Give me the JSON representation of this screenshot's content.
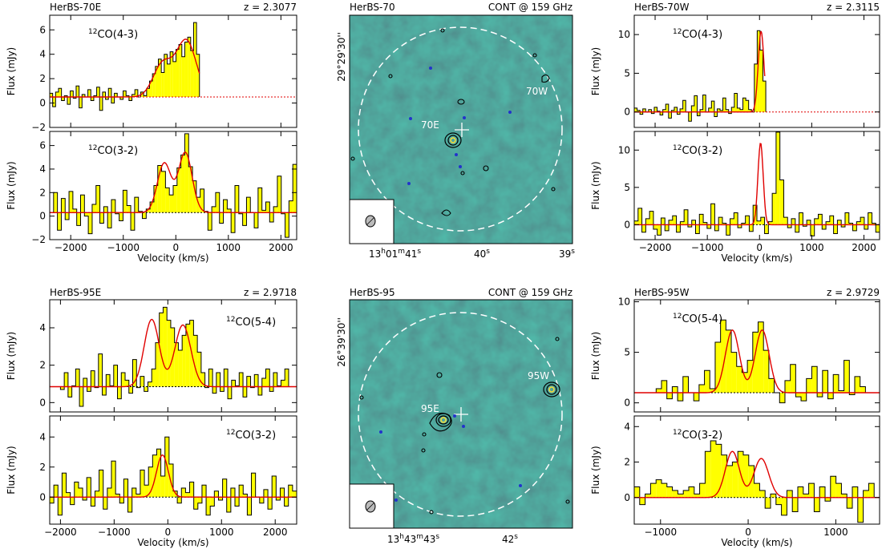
{
  "rows": [
    {
      "left": {
        "source": "HerBS-70E",
        "redshift": "z = 2.3077"
      },
      "map": {
        "source": "HerBS-70",
        "cont": "CONT @ 159 GHz",
        "dec": "29°29'30''",
        "ra": {
          "a": "13",
          "b": "h",
          "c": "01",
          "d": "m",
          "e": "41",
          "f": "s"
        },
        "ra2": "40",
        "ra2s": "s",
        "ra3": "39",
        "ra3s": "s",
        "labels": [
          "70E",
          "70W"
        ]
      },
      "right": {
        "source": "HerBS-70W",
        "redshift": "z = 2.3115"
      }
    },
    {
      "left": {
        "source": "HerBS-95E",
        "redshift": "z = 2.9718"
      },
      "map": {
        "source": "HerBS-95",
        "cont": "CONT @ 159 GHz",
        "dec": "26°39'30''",
        "ra": {
          "a": "13",
          "b": "h",
          "c": "43",
          "d": "m",
          "e": "43",
          "f": "s"
        },
        "ra2": "42",
        "ra2s": "s",
        "labels": [
          "95E",
          "95W"
        ]
      },
      "right": {
        "source": "HerBS-95W",
        "redshift": "z = 2.9729"
      }
    }
  ],
  "axis_labels": {
    "flux": "Flux (mJy)",
    "velocity": "Velocity (km/s)"
  },
  "colors": {
    "fill": "#ffff00",
    "fit": "#e00000",
    "map_bg": "#2f7f73",
    "contour": "#000000",
    "beam_circle": "#ffffff"
  },
  "chart_data": [
    {
      "type": "line",
      "id": "70E-43",
      "source": "HerBS-70E",
      "line": "12CO(4-3)",
      "xlim": [
        -2400,
        2300
      ],
      "ylim": [
        -2,
        7.2
      ],
      "yticks": [
        -2,
        0,
        2,
        4,
        6
      ],
      "xticks": [
        -2000,
        -1000,
        0,
        1000,
        2000
      ],
      "show_xticklabels": false,
      "baseline": 0.5,
      "data_end_velocity": 450,
      "x_range": [
        -2400,
        450
      ],
      "steps": [
        0.8,
        -0.3,
        0.9,
        1.2,
        0.2,
        0.6,
        -0.1,
        1.0,
        0.4,
        1.4,
        -0.4,
        0.7,
        0.5,
        1.1,
        0.2,
        0.6,
        1.3,
        -0.6,
        0.9,
        0.3,
        1.2,
        0.0,
        0.8,
        0.5,
        0.3,
        1.0,
        0.6,
        0.2,
        0.7,
        1.1,
        0.5,
        0.9,
        0.6,
        1.2,
        1.8,
        2.4,
        3.0,
        3.6,
        2.5,
        4.0,
        3.2,
        4.2,
        3.4,
        4.4,
        4.8,
        3.8,
        5.0,
        5.4,
        4.3,
        6.6,
        4.0
      ],
      "fit": [
        {
          "amp": 2.7,
          "mu": -250,
          "sigma": 180
        },
        {
          "amp": 4.6,
          "mu": 200,
          "sigma": 190
        }
      ]
    },
    {
      "type": "line",
      "id": "70E-32",
      "source": "HerBS-70E",
      "line": "12CO(3-2)",
      "xlim": [
        -2400,
        2300
      ],
      "ylim": [
        -2,
        7.2
      ],
      "yticks": [
        -2,
        0,
        2,
        4,
        6
      ],
      "xticks": [
        -2000,
        -1000,
        0,
        1000,
        2000
      ],
      "show_xticklabels": true,
      "baseline": 0.3,
      "x_range": [
        -2400,
        2300
      ],
      "steps": [
        0.3,
        2.0,
        -1.2,
        1.5,
        -0.3,
        2.1,
        0.6,
        -0.8,
        1.8,
        0.0,
        -1.5,
        1.0,
        2.6,
        -0.6,
        0.8,
        -1.0,
        1.4,
        0.2,
        -0.4,
        2.2,
        0.9,
        -1.2,
        1.6,
        0.4,
        -0.2,
        0.6,
        1.2,
        2.6,
        4.3,
        3.8,
        2.4,
        1.8,
        2.6,
        4.1,
        5.2,
        7.0,
        4.2,
        3.0,
        1.6,
        2.3,
        0.4,
        -1.2,
        0.8,
        2.0,
        -0.6,
        1.4,
        0.6,
        -1.4,
        2.6,
        0.2,
        -0.8,
        1.6,
        0.3,
        -1.0,
        2.4,
        0.5,
        1.2,
        -0.5,
        0.8,
        3.4,
        0.2,
        -1.8,
        1.3,
        4.4
      ],
      "fit": [
        {
          "amp": 4.2,
          "mu": -220,
          "sigma": 130
        },
        {
          "amp": 5.1,
          "mu": 180,
          "sigma": 130
        }
      ]
    },
    {
      "type": "line",
      "id": "70W-43",
      "source": "HerBS-70W",
      "line": "12CO(4-3)",
      "xlim": [
        -2400,
        2300
      ],
      "ylim": [
        -2,
        12.5
      ],
      "yticks": [
        0,
        5,
        10
      ],
      "xticks": [
        -2000,
        -1000,
        0,
        1000,
        2000
      ],
      "show_xticklabels": false,
      "baseline": 0.0,
      "data_end_velocity": 100,
      "x_range": [
        -2400,
        120
      ],
      "steps": [
        0.5,
        0.2,
        -0.3,
        0.4,
        0.0,
        0.3,
        -0.2,
        0.6,
        0.1,
        -0.4,
        0.3,
        1.0,
        -0.8,
        0.2,
        0.6,
        -0.3,
        0.4,
        1.5,
        0.0,
        -1.2,
        0.8,
        2.1,
        -0.5,
        0.3,
        2.2,
        0.0,
        0.5,
        1.4,
        -0.6,
        0.4,
        0.2,
        1.8,
        0.3,
        -0.2,
        0.6,
        2.4,
        0.5,
        0.3,
        1.8,
        1.5,
        0.3,
        0.0,
        6.2,
        10.5,
        8.0,
        4.0
      ],
      "fit": [
        {
          "amp": 10.4,
          "mu": 30,
          "sigma": 55
        }
      ]
    },
    {
      "type": "line",
      "id": "70W-32",
      "source": "HerBS-70W",
      "line": "12CO(3-2)",
      "xlim": [
        -2400,
        2300
      ],
      "ylim": [
        -2,
        12.5
      ],
      "yticks": [
        0,
        5,
        10
      ],
      "xticks": [
        -2000,
        -1000,
        0,
        1000,
        2000
      ],
      "show_xticklabels": true,
      "baseline": 0.0,
      "x_range": [
        -2400,
        2300
      ],
      "steps": [
        0.5,
        2.2,
        -1.0,
        0.8,
        1.8,
        -0.6,
        -1.4,
        0.9,
        -0.8,
        0.6,
        1.2,
        -1.0,
        0.4,
        2.0,
        -0.3,
        0.6,
        -1.2,
        1.4,
        0.3,
        -0.5,
        2.8,
        -0.8,
        1.0,
        0.2,
        -1.4,
        0.8,
        1.6,
        -0.4,
        0.2,
        1.2,
        -0.9,
        2.6,
        0.5,
        1.0,
        -1.2,
        0.4,
        4.2,
        12.4,
        6.0,
        1.0,
        -0.4,
        0.8,
        -1.0,
        1.6,
        -0.2,
        0.6,
        -1.5,
        0.8,
        1.4,
        -0.6,
        0.4,
        1.2,
        -1.2,
        0.6,
        -0.3,
        1.6,
        0.2,
        -0.8,
        0.4,
        1.0,
        -0.6,
        1.6,
        0.2,
        -1.0
      ],
      "fit": [
        {
          "amp": 11.0,
          "mu": 20,
          "sigma": 50
        }
      ]
    },
    {
      "type": "line",
      "id": "95E-54",
      "source": "HerBS-95E",
      "line": "12CO(5-4)",
      "xlim": [
        -2200,
        2400
      ],
      "ylim": [
        -0.5,
        5.5
      ],
      "yticks": [
        0,
        2,
        4
      ],
      "xticks": [
        -2000,
        -1000,
        0,
        1000,
        2000
      ],
      "show_xticklabels": false,
      "baseline": 0.85,
      "x_range": [
        -2000,
        2250
      ],
      "steps": [
        0.7,
        1.6,
        0.3,
        0.9,
        1.8,
        -0.2,
        1.3,
        0.6,
        1.7,
        0.8,
        2.6,
        0.4,
        1.5,
        0.9,
        2.0,
        0.2,
        1.6,
        1.2,
        0.5,
        2.3,
        0.8,
        1.4,
        0.6,
        1.1,
        1.8,
        3.2,
        4.8,
        5.1,
        4.4,
        4.0,
        3.2,
        2.8,
        3.6,
        4.2,
        4.4,
        3.6,
        2.7,
        1.6,
        0.8,
        1.8,
        0.5,
        1.6,
        0.6,
        1.8,
        0.2,
        1.2,
        0.9,
        1.6,
        0.3,
        1.4,
        0.8,
        1.5,
        0.4,
        1.3,
        1.8,
        0.6,
        1.6,
        0.9,
        1.2,
        1.8
      ],
      "fit": [
        {
          "amp": 3.6,
          "mu": -300,
          "sigma": 140
        },
        {
          "amp": 3.3,
          "mu": 280,
          "sigma": 150
        }
      ]
    },
    {
      "type": "line",
      "id": "95E-32",
      "source": "HerBS-95E",
      "line": "12CO(3-2)",
      "xlim": [
        -2200,
        2400
      ],
      "ylim": [
        -1.8,
        5.4
      ],
      "yticks": [
        0,
        2,
        4
      ],
      "xticks": [
        -2000,
        -1000,
        0,
        1000,
        2000
      ],
      "show_xticklabels": true,
      "baseline": 0.0,
      "x_range": [
        -2200,
        2400
      ],
      "steps": [
        -0.4,
        0.8,
        -1.2,
        1.6,
        0.3,
        -0.5,
        1.0,
        0.6,
        -0.2,
        1.3,
        -0.6,
        0.4,
        1.8,
        -0.8,
        0.6,
        2.4,
        0.2,
        -0.4,
        1.2,
        -1.0,
        0.6,
        0.2,
        1.8,
        0.8,
        2.0,
        2.8,
        3.2,
        1.4,
        4.0,
        2.2,
        0.4,
        -0.4,
        0.6,
        0.3,
        1.0,
        -0.8,
        -0.4,
        0.8,
        -1.2,
        -0.6,
        0.4,
        -0.2,
        1.2,
        -1.0,
        0.6,
        -0.6,
        0.8,
        0.2,
        -1.2,
        1.6,
        0.0,
        -0.4,
        0.5,
        -0.8,
        1.4,
        -0.2,
        0.6,
        -0.6,
        0.8,
        0.4
      ],
      "fit": [
        {
          "amp": 2.8,
          "mu": -100,
          "sigma": 110
        }
      ]
    },
    {
      "type": "line",
      "id": "95W-54",
      "source": "HerBS-95W",
      "line": "12CO(5-4)",
      "xlim": [
        -1300,
        1500
      ],
      "ylim": [
        -0.9,
        10.2
      ],
      "yticks": [
        0,
        5,
        10
      ],
      "xticks": [
        -1000,
        0,
        1000
      ],
      "show_xticklabels": false,
      "baseline": 1.0,
      "x_range": [
        -1050,
        1400
      ],
      "steps": [
        1.4,
        2.2,
        0.4,
        1.6,
        0.2,
        2.6,
        1.0,
        0.2,
        1.8,
        3.2,
        1.4,
        6.0,
        8.2,
        7.2,
        5.0,
        3.6,
        3.0,
        4.2,
        7.0,
        8.0,
        5.2,
        2.4,
        1.0,
        0.0,
        2.2,
        3.8,
        0.6,
        0.2,
        2.4,
        3.6,
        0.6,
        3.2,
        0.4,
        2.8,
        1.2,
        4.2,
        0.8,
        2.6,
        1.6,
        1.0
      ],
      "fit": [
        {
          "amp": 6.2,
          "mu": -180,
          "sigma": 80
        },
        {
          "amp": 6.2,
          "mu": 160,
          "sigma": 80
        }
      ]
    },
    {
      "type": "line",
      "id": "95W-32",
      "source": "HerBS-95W",
      "line": "12CO(3-2)",
      "xlim": [
        -1300,
        1500
      ],
      "ylim": [
        -1.5,
        4.6
      ],
      "yticks": [
        0,
        2,
        4
      ],
      "xticks": [
        -1000,
        0,
        1000
      ],
      "show_xticklabels": true,
      "baseline": 0.0,
      "x_range": [
        -1300,
        1500
      ],
      "steps": [
        0.6,
        -0.4,
        0.2,
        0.8,
        1.0,
        0.8,
        0.6,
        0.4,
        0.2,
        0.4,
        0.6,
        0.2,
        0.8,
        2.6,
        3.2,
        3.0,
        2.4,
        1.8,
        2.0,
        2.6,
        2.4,
        1.8,
        0.8,
        0.4,
        -0.6,
        0.2,
        -0.4,
        -1.0,
        0.4,
        -0.8,
        0.6,
        0.2,
        0.8,
        -0.8,
        0.6,
        -0.2,
        1.2,
        0.8,
        0.2,
        -0.6,
        0.6,
        -1.4,
        0.4,
        0.8,
        0.0
      ],
      "fit": [
        {
          "amp": 2.6,
          "mu": -180,
          "sigma": 80
        },
        {
          "amp": 2.2,
          "mu": 150,
          "sigma": 85
        }
      ]
    }
  ]
}
